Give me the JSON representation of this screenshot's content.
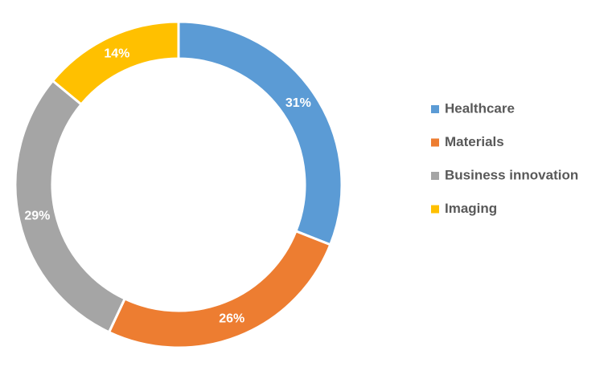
{
  "chart_data": {
    "type": "donut",
    "categories": [
      "Healthcare",
      "Materials",
      "Business innovation",
      "Imaging"
    ],
    "values": [
      31,
      26,
      29,
      14
    ],
    "value_labels": [
      "31%",
      "26%",
      "29%",
      "14%"
    ],
    "colors": [
      "#5b9bd5",
      "#ed7d31",
      "#a5a5a5",
      "#ffc000"
    ],
    "legend": "right"
  }
}
